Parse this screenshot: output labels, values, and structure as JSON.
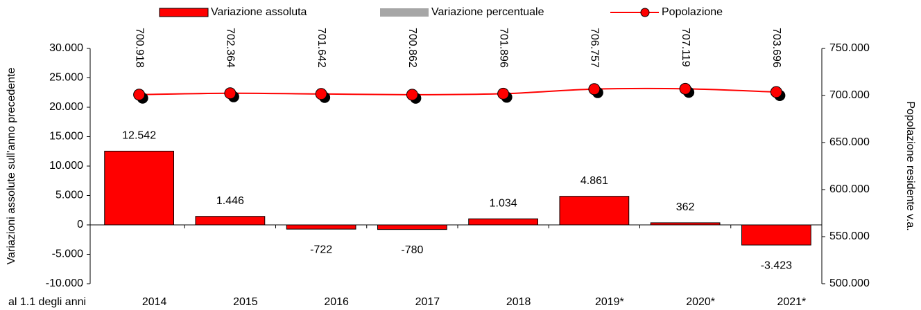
{
  "chart_data": {
    "type": "bar",
    "categories": [
      "2014",
      "2015",
      "2016",
      "2017",
      "2018",
      "2019*",
      "2020*",
      "2021*"
    ],
    "x_label": "al 1.1 degli anni",
    "y_label": "Variazioni assolute sull'anno precedente",
    "y2_label": "Popolazione residente v.a.",
    "series": [
      {
        "name": "Variazione assoluta",
        "type": "bar",
        "color": "#ff0000",
        "values": [
          12542,
          1446,
          -722,
          -780,
          1034,
          4861,
          362,
          -3423
        ],
        "value_labels": [
          "12.542",
          "1.446",
          "-722",
          "-780",
          "1.034",
          "4.861",
          "362",
          "-3.423"
        ]
      },
      {
        "name": "Variazione percentuale",
        "type": "bar",
        "color": "#a6a6a6",
        "values": [
          null,
          null,
          null,
          null,
          null,
          null,
          null,
          null
        ]
      },
      {
        "name": "Popolazione",
        "type": "line",
        "axis": "y2",
        "color": "#ff0000",
        "values": [
          700918,
          702364,
          701642,
          700862,
          701896,
          706757,
          707119,
          703696
        ],
        "value_labels": [
          "700.918",
          "702.364",
          "701.642",
          "700.862",
          "701.896",
          "706.757",
          "707.119",
          "703.696"
        ]
      }
    ],
    "ylim": [
      -10000,
      30000
    ],
    "yticks": [
      {
        "value": -10000,
        "label": "-10.000"
      },
      {
        "value": -5000,
        "label": "-5.000"
      },
      0,
      {
        "value": 5000,
        "label": "5.000"
      },
      {
        "value": 10000,
        "label": "10.000"
      },
      {
        "value": 15000,
        "label": "15.000"
      },
      {
        "value": 20000,
        "label": "20.000"
      },
      {
        "value": 25000,
        "label": "25.000"
      },
      {
        "value": 30000,
        "label": "30.000"
      }
    ],
    "y2lim": [
      500000,
      750000
    ],
    "y2ticks": [
      {
        "value": 500000,
        "label": "500.000"
      },
      {
        "value": 550000,
        "label": "550.000"
      },
      {
        "value": 600000,
        "label": "600.000"
      },
      {
        "value": 650000,
        "label": "650.000"
      },
      {
        "value": 700000,
        "label": "700.000"
      },
      {
        "value": 750000,
        "label": "750.000"
      }
    ],
    "legend": "top"
  }
}
